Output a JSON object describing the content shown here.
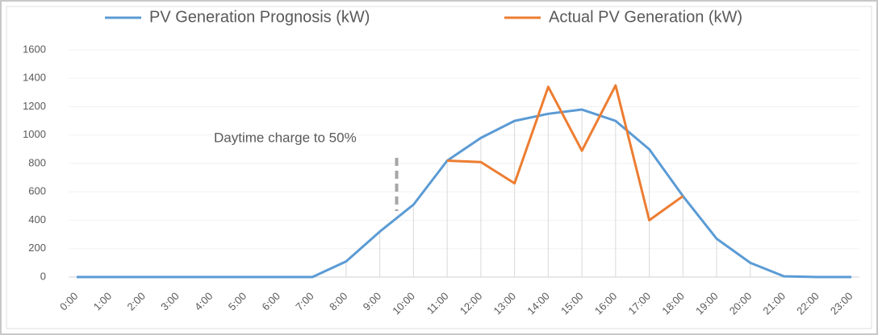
{
  "chart_data": {
    "type": "line",
    "categories": [
      "0:00",
      "1:00",
      "2:00",
      "3:00",
      "4:00",
      "5:00",
      "6:00",
      "7:00",
      "8:00",
      "9:00",
      "10:00",
      "11:00",
      "12:00",
      "13:00",
      "14:00",
      "15:00",
      "16:00",
      "17:00",
      "18:00",
      "19:00",
      "20:00",
      "21:00",
      "22:00",
      "23:00"
    ],
    "series": [
      {
        "name": "PV Generation Prognosis (kW)",
        "color": "#5b9bd5",
        "values": [
          0,
          0,
          0,
          0,
          0,
          0,
          0,
          0,
          110,
          320,
          510,
          820,
          980,
          1100,
          1150,
          1180,
          1100,
          900,
          570,
          270,
          100,
          5,
          0,
          0
        ]
      },
      {
        "name": "Actual PV Generation (kW)",
        "color": "#ed7d31",
        "values": [
          null,
          null,
          null,
          null,
          null,
          null,
          null,
          null,
          null,
          null,
          null,
          820,
          810,
          660,
          1340,
          890,
          1350,
          400,
          570,
          null,
          null,
          null,
          null,
          null
        ]
      }
    ],
    "ylim": [
      0,
      1600
    ],
    "yticks": [
      0,
      200,
      400,
      600,
      800,
      1000,
      1200,
      1400,
      1600
    ],
    "annotations": [
      "Daytime charge to 50%"
    ],
    "legend": "top"
  }
}
